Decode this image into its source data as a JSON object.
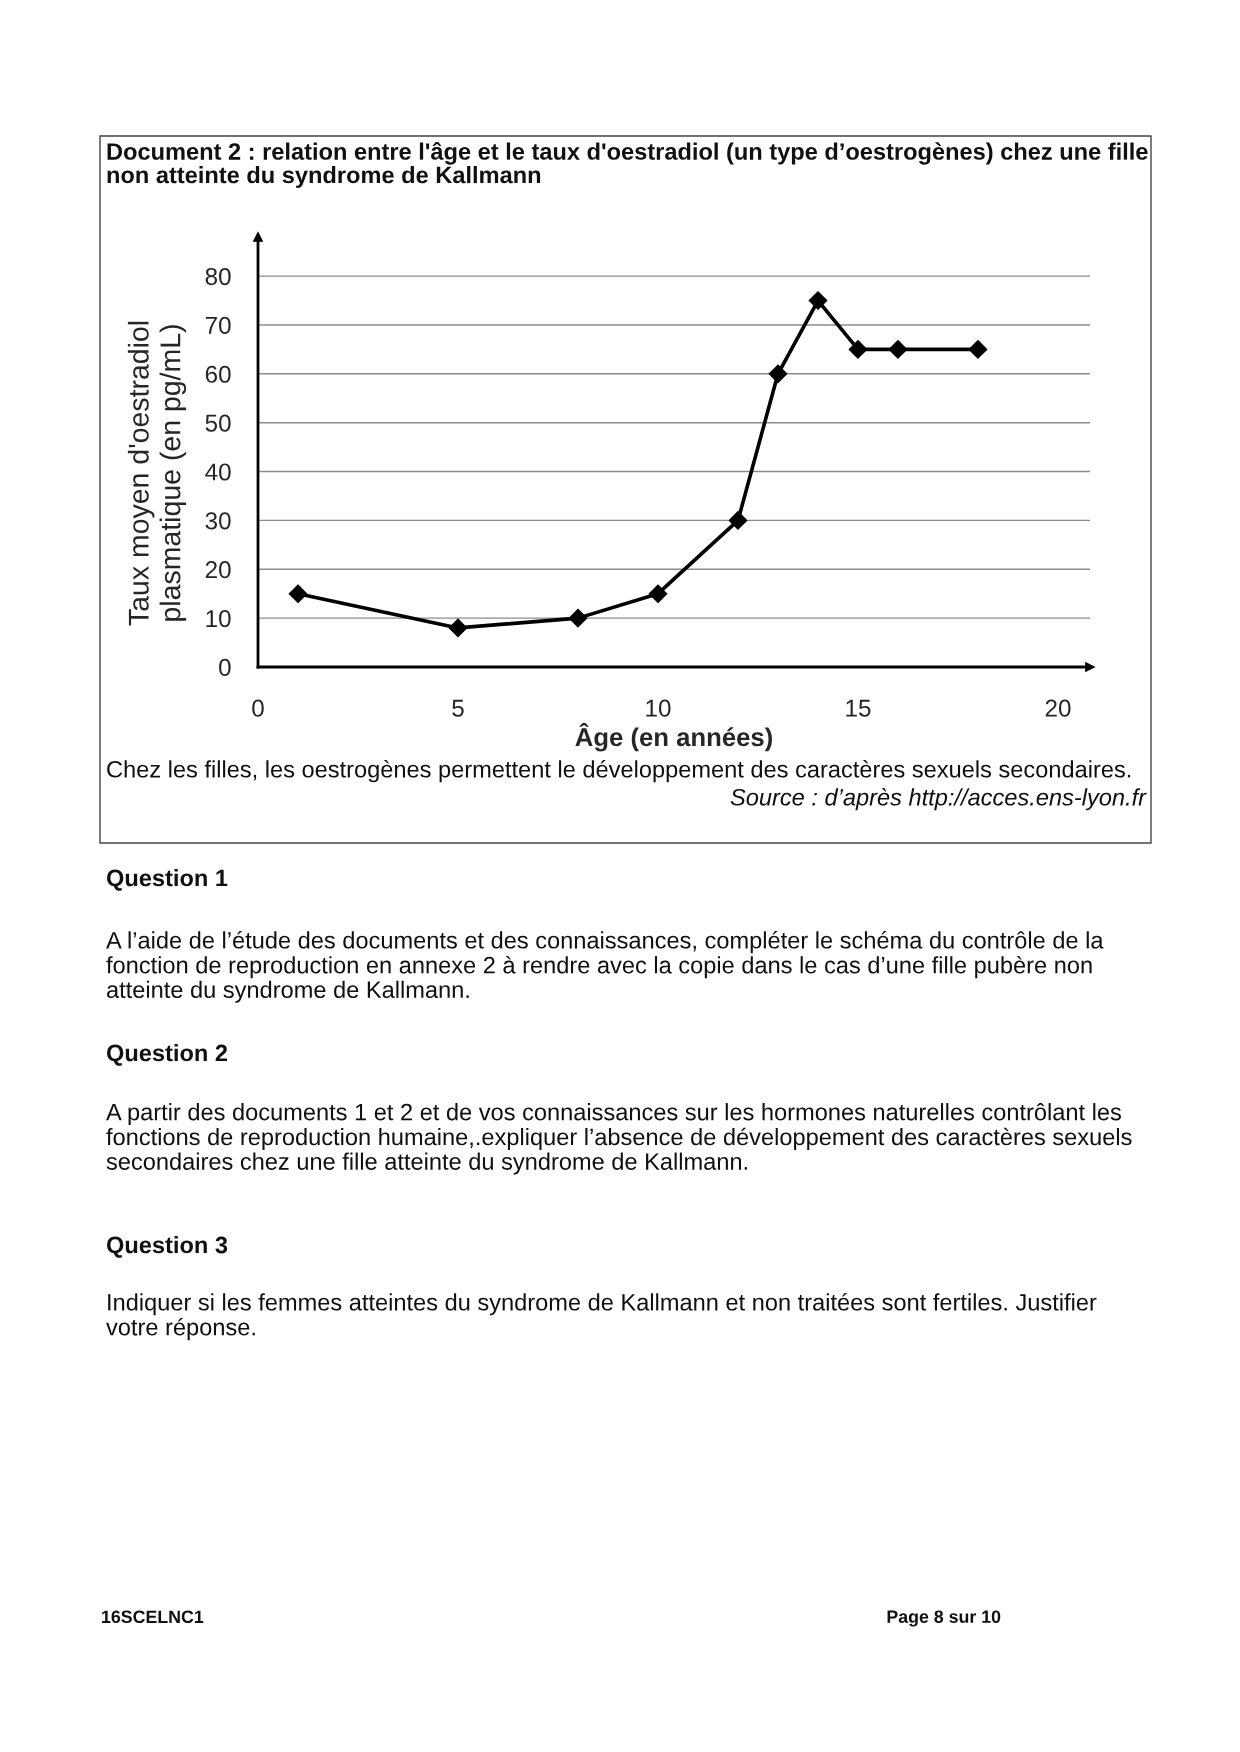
{
  "chart_data": {
    "type": "line",
    "title": "Document 2 : relation entre l'âge et le taux d'oestradiol (un type d’oestrogènes) chez une fille non atteinte du syndrome de Kallmann",
    "xlabel": "Âge (en années)",
    "ylabel": "Taux moyen d'oestradiol plasmatique (en pg/mL)",
    "x": [
      1,
      5,
      8,
      10,
      12,
      13,
      14,
      15,
      16,
      18
    ],
    "series": [
      {
        "color": "#000000",
        "values": [
          15,
          8,
          10,
          15,
          30,
          60,
          75,
          65,
          65,
          65
        ]
      }
    ],
    "xlim": [
      0,
      20.8
    ],
    "ylim": [
      0,
      88
    ],
    "xticks": [
      0,
      5,
      10,
      15,
      20
    ],
    "yticks": [
      0,
      10,
      20,
      30,
      40,
      50,
      60,
      70,
      80
    ],
    "grid": "y",
    "marker": "diamond",
    "line_style": "solid",
    "annotations": [
      "Chez les filles, les oestrogènes permettent le développement des caractères sexuels secondaires.",
      "Source : d’après http://acces.ens-lyon.fr",
      "Question 1",
      "A l’aide de l’étude des documents et des connaissances, compléter le schéma du contrôle de la fonction de reproduction en annexe 2 à rendre avec la copie dans le cas d’une fille pubère non atteinte du syndrome de Kallmann.",
      "Question 2",
      "A partir des documents 1 et 2 et de vos connaissances sur les hormones naturelles contrôlant les fonctions de reproduction humaine,.expliquer l’absence de développement des caractères sexuels secondaires chez une fille atteinte du syndrome de Kallmann.",
      "Question 3",
      "Indiquer si les femmes atteintes du syndrome de Kallmann et non traitées sont fertiles. Justifier votre réponse.",
      "16SCELNC1",
      "Page 8 sur 10"
    ]
  }
}
